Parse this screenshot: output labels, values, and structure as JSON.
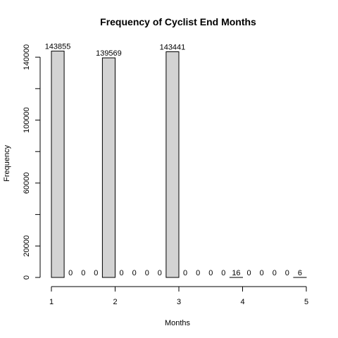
{
  "chart_data": {
    "type": "bar",
    "title": "Frequency of Cyclist End Months",
    "xlabel": "Months",
    "ylabel": "Frequency",
    "bins": [
      [
        1.0,
        1.2
      ],
      [
        1.2,
        1.4
      ],
      [
        1.4,
        1.6
      ],
      [
        1.6,
        1.8
      ],
      [
        1.8,
        2.0
      ],
      [
        2.0,
        2.2
      ],
      [
        2.2,
        2.4
      ],
      [
        2.4,
        2.6
      ],
      [
        2.6,
        2.8
      ],
      [
        2.8,
        3.0
      ],
      [
        3.0,
        3.2
      ],
      [
        3.2,
        3.4
      ],
      [
        3.4,
        3.6
      ],
      [
        3.6,
        3.8
      ],
      [
        3.8,
        4.0
      ],
      [
        4.0,
        4.2
      ],
      [
        4.2,
        4.4
      ],
      [
        4.4,
        4.6
      ],
      [
        4.6,
        4.8
      ],
      [
        4.8,
        5.0
      ]
    ],
    "values": [
      143855,
      0,
      0,
      0,
      139569,
      0,
      0,
      0,
      0,
      143441,
      0,
      0,
      0,
      0,
      16,
      0,
      0,
      0,
      0,
      6
    ],
    "xlim": [
      1,
      5
    ],
    "ylim": [
      0,
      145000
    ],
    "x_ticks": [
      "1",
      "2",
      "3",
      "4",
      "5"
    ],
    "y_ticks": [
      "0",
      "20000",
      "60000",
      "100000",
      "140000"
    ],
    "bar_fill": "#d3d3d3",
    "bar_stroke": "#000000",
    "grid": false,
    "legend": "none"
  }
}
